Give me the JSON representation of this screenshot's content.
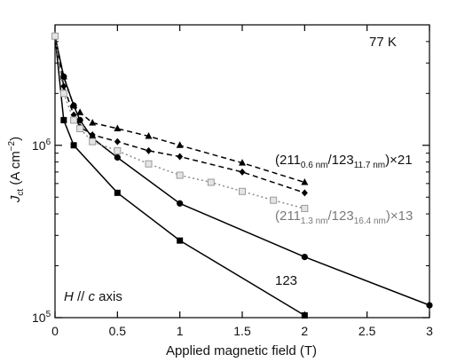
{
  "chart_data": {
    "type": "line",
    "x_scale": "linear",
    "y_scale": "log",
    "xlim": [
      0,
      3
    ],
    "ylim": [
      100000,
      5000000
    ],
    "xlabel": "Applied magnetic field (T)",
    "ylabel": {
      "main": "J",
      "sub": "ct",
      "unit": " (A cm",
      "sup": "−2",
      "close": ")"
    },
    "x_ticks": [
      "0",
      "0.5",
      "1",
      "1.5",
      "2",
      "2.5",
      "3"
    ],
    "x_tick_values": [
      0,
      0.5,
      1,
      1.5,
      2,
      2.5,
      3
    ],
    "y_ticks": [
      {
        "value": 1000000,
        "base": "10",
        "exp": "6"
      },
      {
        "value": 100000,
        "base": "10",
        "exp": "5"
      }
    ],
    "annotations": {
      "temperature": "77 K",
      "orientation": {
        "italic1": "H",
        "mid": " // ",
        "italic2": "c",
        "rest": " axis"
      },
      "label_123": "123",
      "label_a": {
        "p1": "(211",
        "s1": "0.6 nm",
        "p2": "/123",
        "s2": "11.7 nm",
        "p3": ")×21"
      },
      "label_b": {
        "p1": "(211",
        "s1": "1.3 nm",
        "p2": "/123",
        "s2": "16.4 nm",
        "p3": ")×13"
      }
    },
    "series": [
      {
        "name": "123",
        "marker": "square",
        "line": "solid",
        "color": "#000000",
        "x": [
          0,
          0.07,
          0.15,
          0.5,
          1.0,
          2.0
        ],
        "y": [
          4300000,
          1400000,
          1000000,
          530000,
          280000,
          103000
        ]
      },
      {
        "name": "123 (circles)",
        "marker": "circle",
        "line": "solid",
        "color": "#000000",
        "x": [
          0,
          0.07,
          0.15,
          0.2,
          0.3,
          0.5,
          1.0,
          2.0,
          3.0
        ],
        "y": [
          4300000,
          2500000,
          1700000,
          1400000,
          1100000,
          850000,
          460000,
          225000,
          118000
        ]
      },
      {
        "name": "(211 0.6 nm/123 11.7 nm)×21",
        "marker": "triangle",
        "line": "dashed",
        "color": "#000000",
        "x": [
          0,
          0.07,
          0.15,
          0.2,
          0.3,
          0.5,
          0.75,
          1.0,
          1.5,
          2.0
        ],
        "y": [
          4300000,
          2500000,
          1700000,
          1550000,
          1350000,
          1250000,
          1130000,
          1000000,
          790000,
          610000
        ]
      },
      {
        "name": "(211 0.6 nm/123 11.7 nm)×21 (diamonds)",
        "marker": "diamond",
        "line": "dashed",
        "color": "#000000",
        "x": [
          0,
          0.07,
          0.15,
          0.2,
          0.3,
          0.5,
          0.75,
          1.0,
          1.5,
          2.0
        ],
        "y": [
          4300000,
          2200000,
          1500000,
          1280000,
          1150000,
          1050000,
          930000,
          860000,
          700000,
          530000
        ]
      },
      {
        "name": "(211 1.3 nm/123 16.4 nm)×13",
        "marker": "open-square",
        "line": "dotted",
        "color": "#8c8c8c",
        "x": [
          0,
          0.07,
          0.15,
          0.2,
          0.3,
          0.5,
          0.75,
          1.0,
          1.25,
          1.5,
          1.75,
          2.0
        ],
        "y": [
          4300000,
          2000000,
          1400000,
          1250000,
          1050000,
          930000,
          780000,
          670000,
          610000,
          540000,
          480000,
          430000
        ]
      }
    ]
  }
}
